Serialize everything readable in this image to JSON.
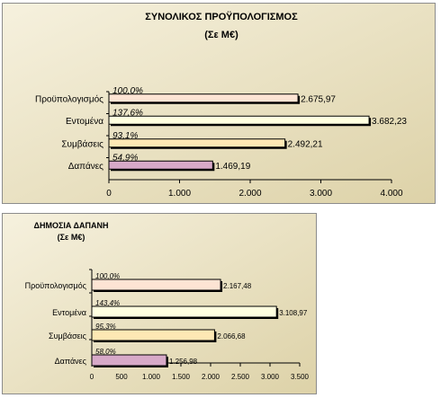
{
  "chart_data": [
    {
      "type": "bar",
      "orientation": "horizontal",
      "title": "ΣΥΝΟΛΙΚΟΣ ΠΡΟΫΠΟΛΟΓΙΣΜΟΣ",
      "subtitle": "(Σε Μ€)",
      "categories": [
        "Προϋπολογισμός",
        "Εντομένα",
        "Συμβάσεις",
        "Δαπάνες"
      ],
      "values": [
        2675.97,
        3682.23,
        2492.21,
        1469.19
      ],
      "value_labels": [
        "2.675,97",
        "3.682,23",
        "2.492,21",
        "1.469,19"
      ],
      "percent_labels": [
        "100,0%",
        "137,6%",
        "93,1%",
        "54,9%"
      ],
      "bar_colors": [
        "#fde4d4",
        "#ffffe0",
        "#fde8b4",
        "#d7a9c8"
      ],
      "xlim": [
        0,
        4000
      ],
      "xticks": [
        0,
        1000,
        2000,
        3000,
        4000
      ],
      "xtick_labels": [
        "0",
        "1.000",
        "2.000",
        "3.000",
        "4.000"
      ],
      "grid": false,
      "background": "gradient-beige"
    },
    {
      "type": "bar",
      "orientation": "horizontal",
      "title": "ΔΗΜΟΣΙΑ ΔΑΠΑΝΗ",
      "subtitle": "(Σε Μ€)",
      "categories": [
        "Προϋπολογισμός",
        "Εντομένα",
        "Συμβάσεις",
        "Δαπάνες"
      ],
      "values": [
        2167.48,
        3108.97,
        2066.68,
        1256.98
      ],
      "value_labels": [
        "2.167,48",
        "3.108,97",
        "2.066,68",
        "1.256,98"
      ],
      "percent_labels": [
        "100,0%",
        "143,4%",
        "95,3%",
        "58,0%"
      ],
      "bar_colors": [
        "#fde4d4",
        "#ffffe0",
        "#fde8b4",
        "#d7a9c8"
      ],
      "xlim": [
        0,
        3500
      ],
      "xticks": [
        0,
        500,
        1000,
        1500,
        2000,
        2500,
        3000,
        3500
      ],
      "xtick_labels": [
        "0",
        "500",
        "1.000",
        "1.500",
        "2.000",
        "2.500",
        "3.000",
        "3.500"
      ],
      "grid": false,
      "background": "gradient-beige"
    }
  ]
}
